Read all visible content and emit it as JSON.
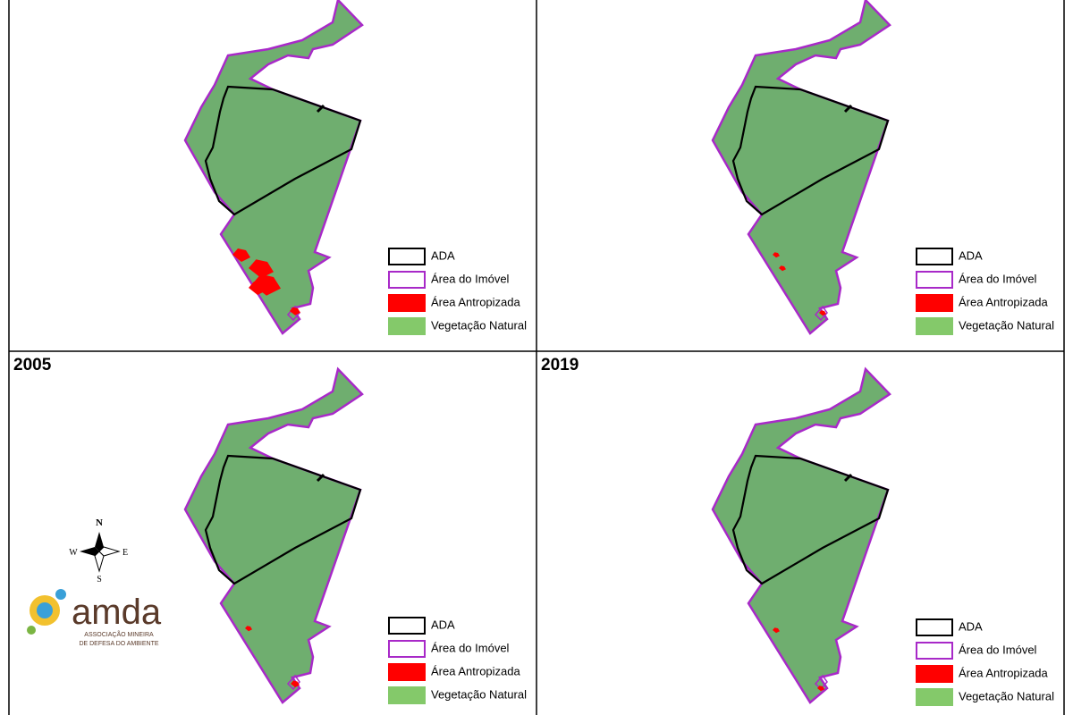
{
  "panels": [
    {
      "legend": [
        "ADA",
        "Área do Imóvel",
        "Área Antropizada",
        "Vegetação Natural"
      ]
    },
    {
      "legend": [
        "ADA",
        "Área do Imóvel",
        "Área Antropizada",
        "Vegetação Natural"
      ]
    },
    {
      "title": "2005",
      "legend": [
        "ADA",
        "Área do Imóvel",
        "Área Antropizada",
        "Vegetação Natural"
      ]
    },
    {
      "title": "2019",
      "legend": [
        "ADA",
        "Área do Imóvel",
        "Área Antropizada",
        "Vegetação Natural"
      ]
    }
  ],
  "compass": {
    "north": "N",
    "south": "S",
    "east": "E",
    "west": "W"
  },
  "logo": {
    "name": "amda",
    "subtitle_lines": [
      "ASSOCIAÇÃO MINEIRA",
      "DE DEFESA DO AMBIENTE"
    ]
  }
}
